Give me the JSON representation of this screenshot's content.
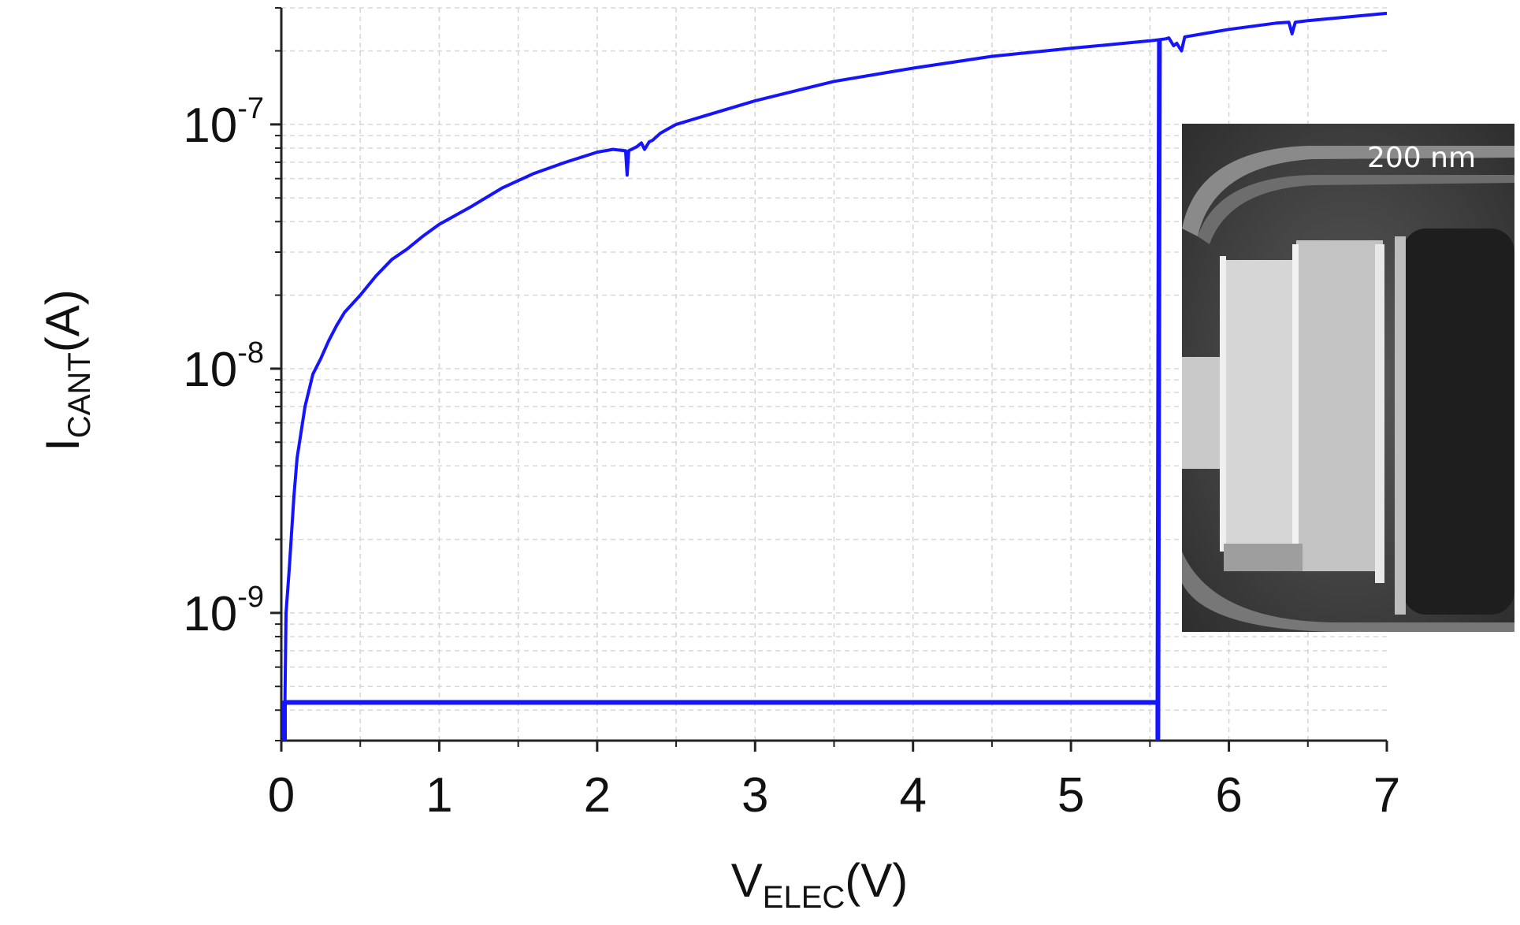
{
  "chart_data": {
    "type": "line",
    "title": "",
    "xlabel": {
      "main": "V",
      "sub": "ELEC",
      "unit": "(V)"
    },
    "ylabel": {
      "main": "I",
      "sub": "CANT",
      "unit": "(A)"
    },
    "xlim": [
      0,
      7
    ],
    "ylim": [
      3e-10,
      3e-07
    ],
    "yscale": "log",
    "grid": true,
    "x_ticks": [
      "0",
      "1",
      "2",
      "3",
      "4",
      "5",
      "6",
      "7"
    ],
    "y_ticks": [
      {
        "base": "10",
        "exp": "-7",
        "value": 1e-07
      },
      {
        "base": "10",
        "exp": "-8",
        "value": 1e-08
      },
      {
        "base": "10",
        "exp": "-9",
        "value": 1e-09
      }
    ],
    "line_color": "#1414ff",
    "series": [
      {
        "segments": [
          {
            "x": [
              0.02,
              0.03,
              0.05,
              0.08,
              0.1,
              0.15,
              0.2,
              0.25,
              0.3,
              0.35,
              0.4,
              0.5,
              0.6,
              0.7,
              0.8,
              0.9,
              1.0,
              1.2,
              1.4,
              1.6,
              1.8,
              2.0,
              2.1,
              2.18,
              2.19,
              2.2,
              2.25,
              2.28,
              2.3,
              2.33,
              2.35,
              2.4,
              2.45,
              2.5,
              3.0,
              3.5,
              4.0,
              4.5,
              5.0,
              5.5,
              5.6
            ],
            "y": [
              3e-10,
              1e-09,
              1.5e-09,
              3e-09,
              4.3e-09,
              7e-09,
              9.5e-09,
              1.1e-08,
              1.3e-08,
              1.5e-08,
              1.7e-08,
              2e-08,
              2.4e-08,
              2.8e-08,
              3.1e-08,
              3.5e-08,
              3.9e-08,
              4.6e-08,
              5.5e-08,
              6.3e-08,
              7e-08,
              7.7e-08,
              7.9e-08,
              7.8e-08,
              6.2e-08,
              7.8e-08,
              8.1e-08,
              8.4e-08,
              7.9e-08,
              8.5e-08,
              8.6e-08,
              9.2e-08,
              9.6e-08,
              1e-07,
              1.25e-07,
              1.5e-07,
              1.7e-07,
              1.9e-07,
              2.05e-07,
              2.2e-07,
              2.24e-07
            ]
          },
          {
            "x": [
              5.6,
              5.62,
              5.65,
              5.67,
              5.7,
              5.72,
              5.75,
              6.0,
              6.3,
              6.38,
              6.4,
              6.42,
              6.5,
              7.0
            ],
            "y": [
              2.24e-07,
              2.26e-07,
              2.1e-07,
              2.15e-07,
              2e-07,
              2.28e-07,
              2.3e-07,
              2.45e-07,
              2.6e-07,
              2.62e-07,
              2.35e-07,
              2.62e-07,
              2.66e-07,
              2.85e-07
            ]
          },
          {
            "x": [
              0.02,
              0.02,
              0.03,
              5.55,
              5.55,
              5.56
            ],
            "y": [
              3e-10,
              4.3e-10,
              4.3e-10,
              4.3e-10,
              3e-10,
              2.2e-07
            ]
          }
        ]
      }
    ],
    "inset": {
      "scale_label": "200 nm"
    }
  }
}
